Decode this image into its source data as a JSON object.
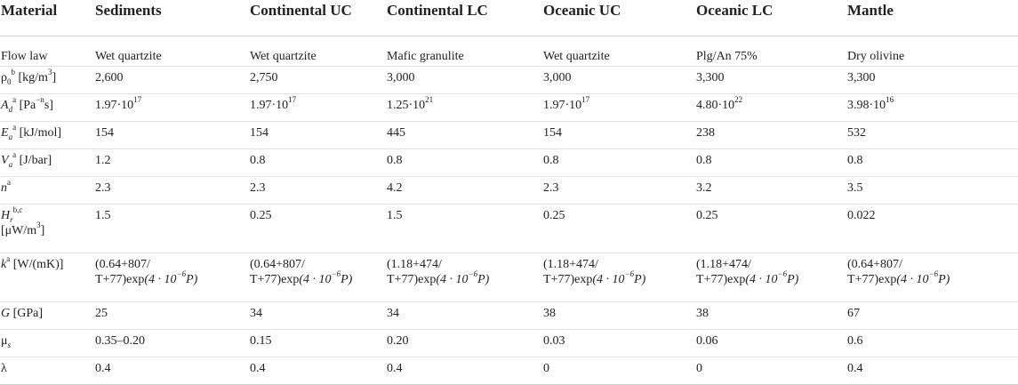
{
  "headers": [
    "Material",
    "Sediments",
    "Continental UC",
    "Continental LC",
    "Oceanic UC",
    "Oceanic LC",
    "Mantle"
  ],
  "rows": {
    "flow_law": {
      "label": "Flow law",
      "values": [
        "Wet quartzite",
        "Wet quartzite",
        "Mafic granulite",
        "Wet quartzite",
        "Plg/An 75%",
        "Dry olivine"
      ]
    },
    "rho": {
      "label_sym": "ρ",
      "label_sub": "0",
      "label_sup": "b",
      "label_unit": "[kg/m",
      "label_unit_sup": "3",
      "label_unit_end": "]",
      "values": [
        "2,600",
        "2,750",
        "3,000",
        "3,000",
        "3,300",
        "3,300"
      ]
    },
    "Ad": {
      "label_sym": "A",
      "label_sub": "d",
      "label_sup": "a",
      "label_unit": "[Pa",
      "label_unit_sup": "−n",
      "label_unit_end": "s]",
      "mantissas": [
        "1.97·10",
        "1.97·10",
        "1.25·10",
        "1.97·10",
        "4.80·10",
        "3.98·10"
      ],
      "exponents": [
        "17",
        "17",
        "21",
        "17",
        "22",
        "16"
      ]
    },
    "Ea": {
      "label_sym": "E",
      "label_sub": "a",
      "label_sup": "a",
      "label_unit": "[kJ/mol]",
      "values": [
        "154",
        "154",
        "445",
        "154",
        "238",
        "532"
      ]
    },
    "Va": {
      "label_sym": "V",
      "label_sub": "a",
      "label_sup": "a",
      "label_unit": "[J/bar]",
      "values": [
        "1.2",
        "0.8",
        "0.8",
        "0.8",
        "0.8",
        "0.8"
      ]
    },
    "n": {
      "label_sym": "n",
      "label_sup": "a",
      "values": [
        "2.3",
        "2.3",
        "4.2",
        "2.3",
        "3.2",
        "3.5"
      ]
    },
    "Hr": {
      "label_sym": "H",
      "label_sub": "r",
      "label_sup": "b,c",
      "label_unit": "[μW/m",
      "label_unit_sup": "3",
      "label_unit_end": "]",
      "values": [
        "1.5",
        "0.25",
        "1.5",
        "0.25",
        "0.25",
        "0.022"
      ]
    },
    "k": {
      "label_sym": "k",
      "label_sup": "a",
      "label_unit": "[W/(mK)]",
      "line1": [
        "(0.64+807/",
        "(0.64+807/",
        "(1.18+474/",
        "(1.18+474/",
        "(1.18+474/",
        "(0.64+807/"
      ],
      "line2_prefix": "T+77)exp",
      "line2_expr": "(4 · 10",
      "line2_exp_sup": "−6",
      "line2_end": "P)"
    },
    "G": {
      "label_sym": "G",
      "label_unit": "[GPa]",
      "values": [
        "25",
        "34",
        "34",
        "38",
        "38",
        "67"
      ]
    },
    "mu": {
      "label_sym": "μ",
      "label_sub": "s",
      "values": [
        "0.35–0.20",
        "0.15",
        "0.20",
        "0.03",
        "0.06",
        "0.6"
      ]
    },
    "lambda": {
      "label_sym": "λ",
      "values": [
        "0.4",
        "0.4",
        "0.4",
        "0",
        "0",
        "0.4"
      ]
    }
  }
}
